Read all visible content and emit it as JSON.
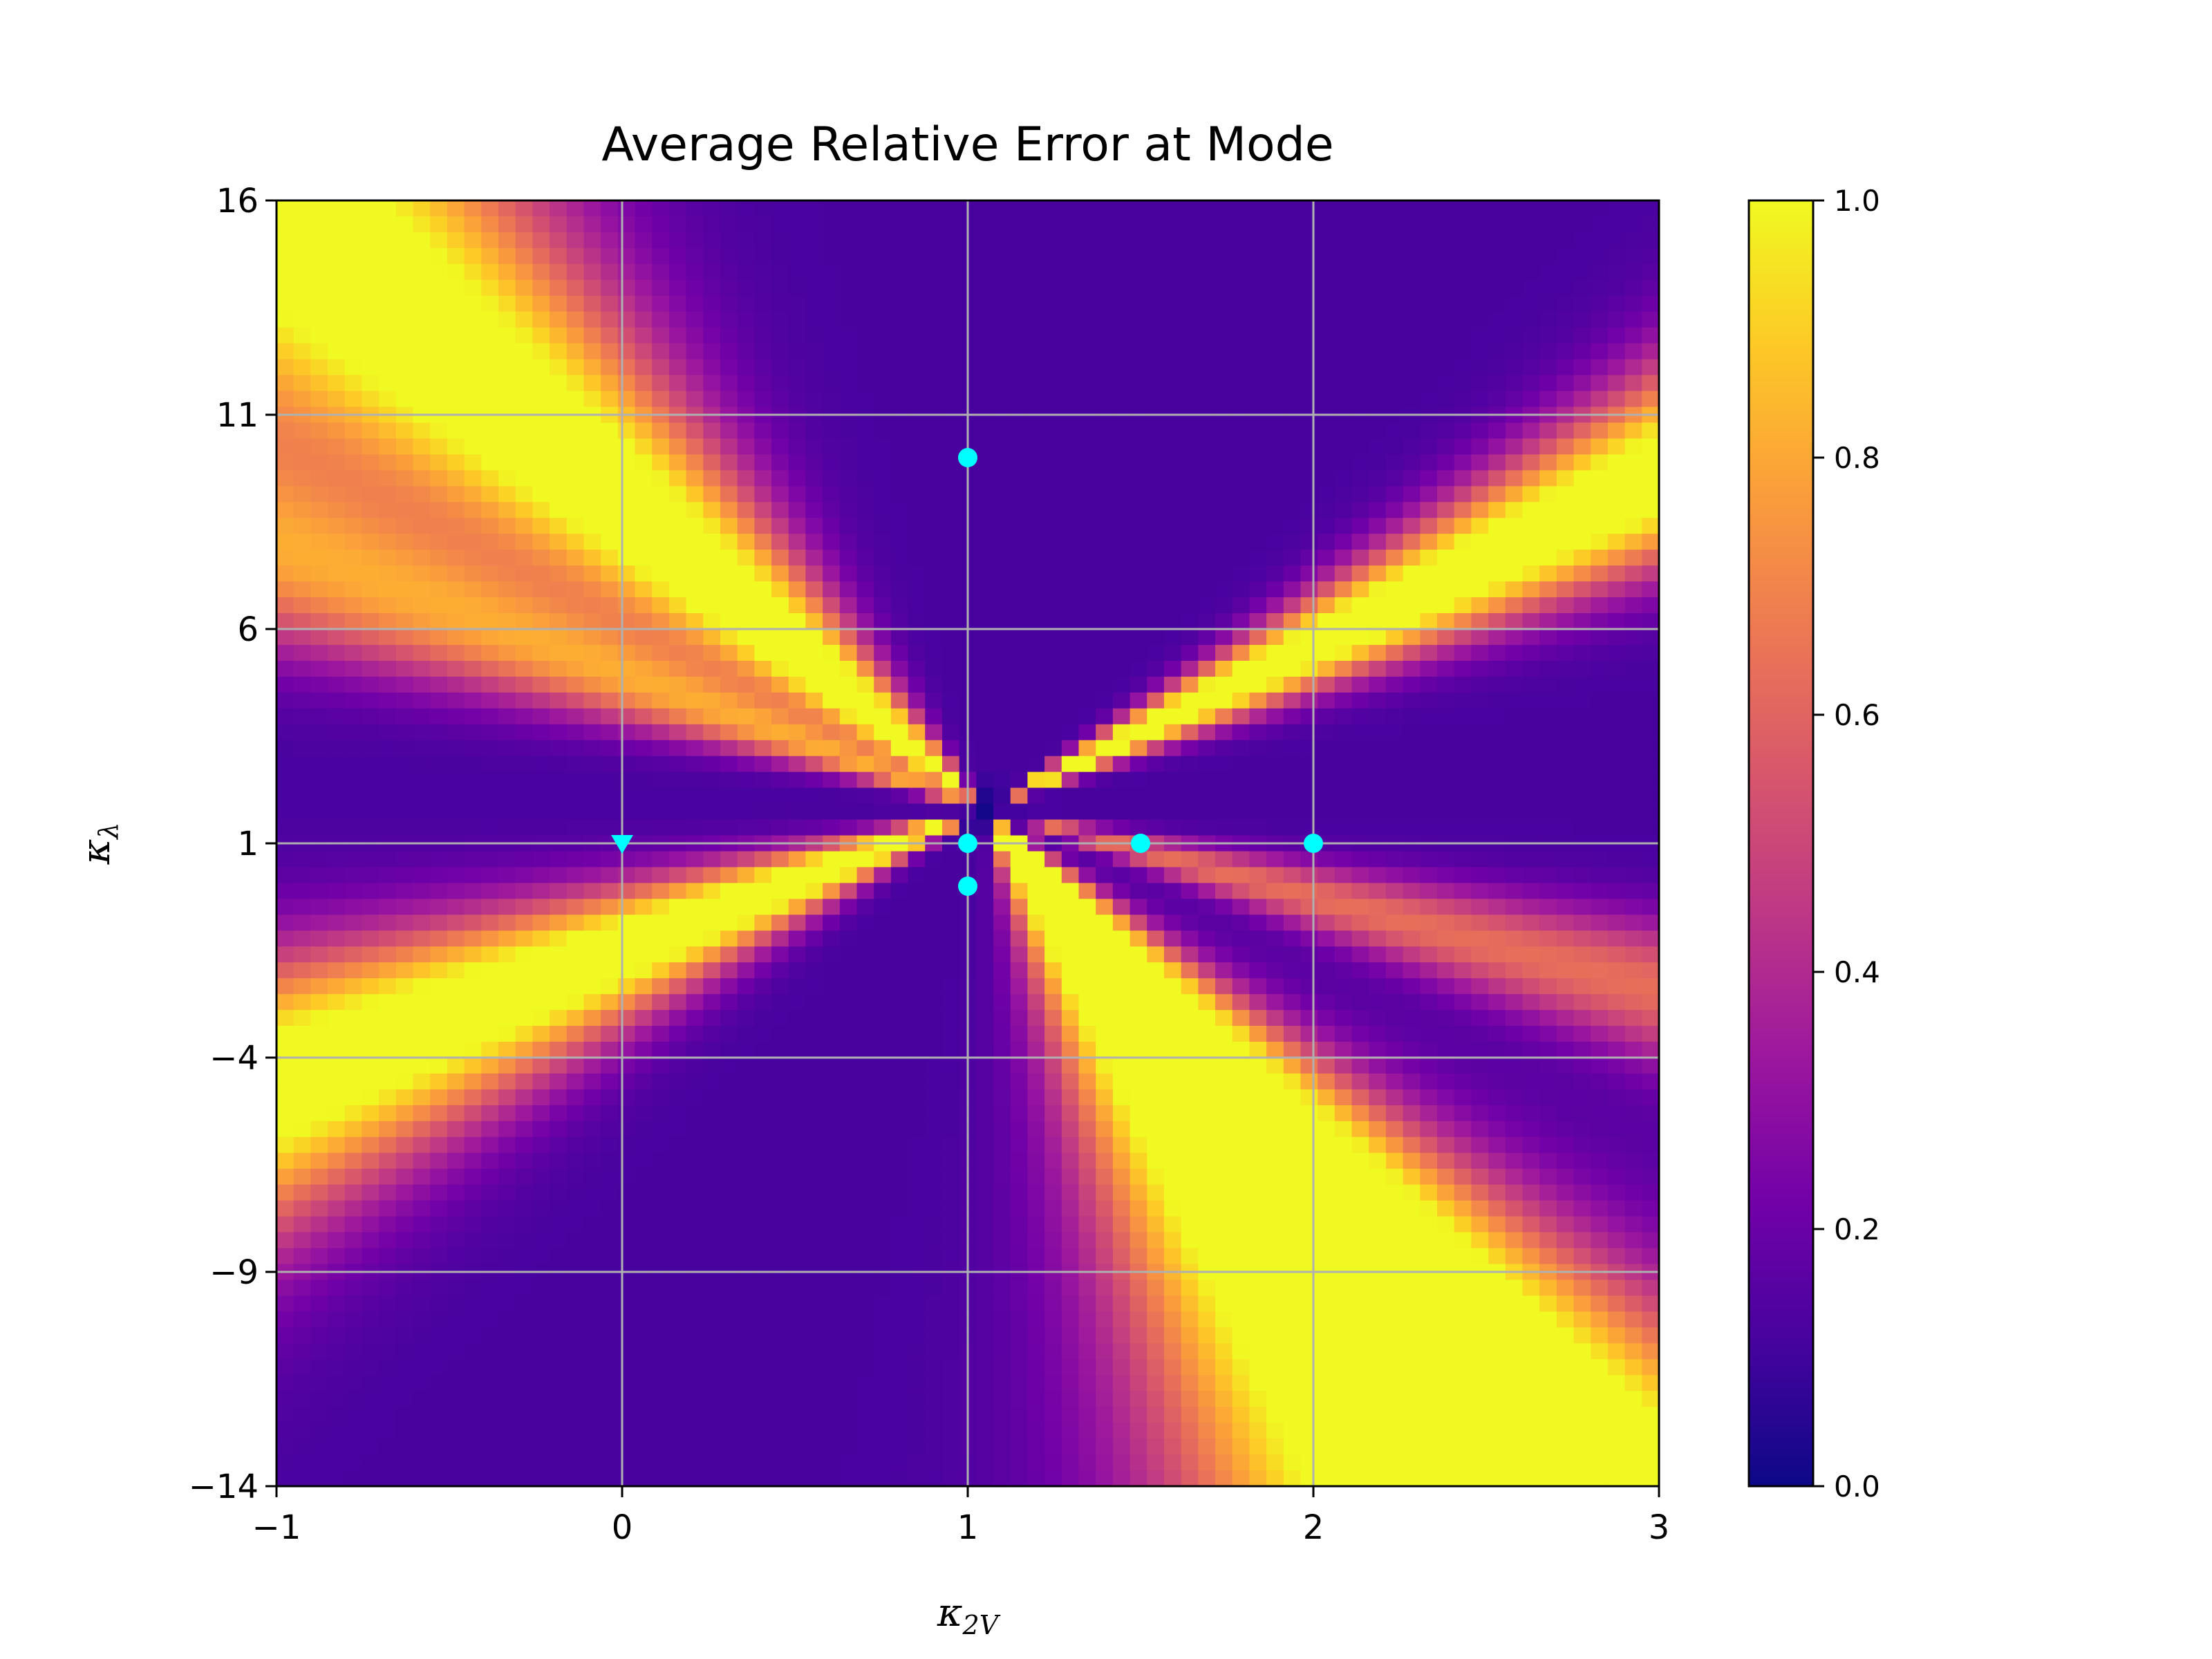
{
  "chart_data": {
    "type": "heatmap",
    "title": "Average Relative Error at Mode",
    "xlabel": {
      "base": "κ",
      "sub": "2V"
    },
    "ylabel": {
      "base": "κ",
      "sub": "λ"
    },
    "xlim": [
      -1,
      3
    ],
    "ylim": [
      -14,
      16
    ],
    "x_ticks": [
      -1,
      0,
      1,
      2,
      3
    ],
    "x_tick_labels": [
      "−1",
      "0",
      "1",
      "2",
      "3"
    ],
    "y_ticks": [
      -14,
      -9,
      -4,
      1,
      6,
      11,
      16
    ],
    "y_tick_labels": [
      "−14",
      "−9",
      "−4",
      "1",
      "6",
      "11",
      "16"
    ],
    "grid": true,
    "grid_color": "#b0b0b0",
    "colormap": "plasma",
    "colormap_stops": [
      "#0d0887",
      "#46039f",
      "#7201a8",
      "#9c179e",
      "#bd3786",
      "#d8576b",
      "#ed7953",
      "#fb9f3a",
      "#fdca26",
      "#f0f921"
    ],
    "colorbar": {
      "range": [
        0.0,
        1.0
      ],
      "ticks": [
        0.0,
        0.2,
        0.4,
        0.6,
        0.8,
        1.0
      ],
      "tick_labels": [
        "0.0",
        "0.2",
        "0.4",
        "0.6",
        "0.8",
        "1.0"
      ]
    },
    "grid_resolution": [
      81,
      81
    ],
    "basis_points": {
      "color": "#00ffff",
      "circles": [
        {
          "x": 1,
          "y": 10
        },
        {
          "x": 1,
          "y": 1
        },
        {
          "x": 1,
          "y": 0
        },
        {
          "x": 1.5,
          "y": 1
        },
        {
          "x": 2,
          "y": 1
        }
      ],
      "triangles": [
        {
          "x": 0,
          "y": 1
        }
      ]
    }
  }
}
